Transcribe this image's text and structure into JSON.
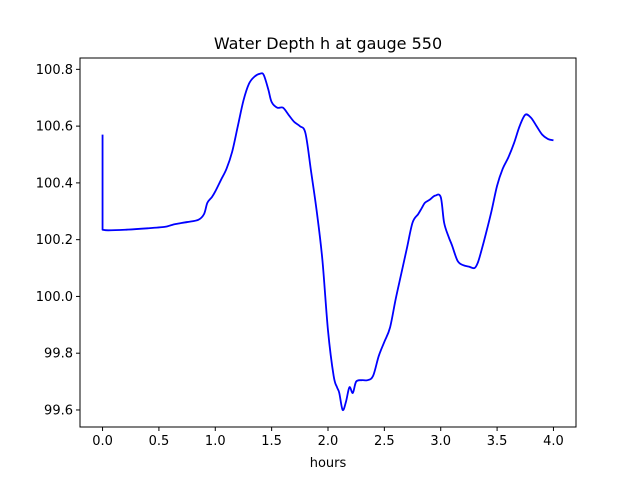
{
  "chart_data": {
    "type": "line",
    "title": "Water Depth h at gauge 550",
    "xlabel": "hours",
    "ylabel": "",
    "xlim": [
      -0.2,
      4.2
    ],
    "ylim": [
      99.54,
      100.84
    ],
    "xticks": [
      0.0,
      0.5,
      1.0,
      1.5,
      2.0,
      2.5,
      3.0,
      3.5,
      4.0
    ],
    "xtick_labels": [
      "0.0",
      "0.5",
      "1.0",
      "1.5",
      "2.0",
      "2.5",
      "3.0",
      "3.5",
      "4.0"
    ],
    "yticks": [
      99.6,
      99.8,
      100.0,
      100.2,
      100.4,
      100.6,
      100.8
    ],
    "ytick_labels": [
      "99.6",
      "99.8",
      "100.0",
      "100.2",
      "100.4",
      "100.6",
      "100.8"
    ],
    "grid": false,
    "series": [
      {
        "color": "#0000ff",
        "x": [
          0.0,
          0.0,
          0.05,
          0.2,
          0.4,
          0.55,
          0.6,
          0.65,
          0.75,
          0.85,
          0.9,
          0.93,
          0.97,
          1.0,
          1.05,
          1.1,
          1.15,
          1.2,
          1.25,
          1.3,
          1.35,
          1.4,
          1.43,
          1.47,
          1.5,
          1.55,
          1.6,
          1.65,
          1.7,
          1.75,
          1.8,
          1.85,
          1.9,
          1.95,
          2.0,
          2.05,
          2.08,
          2.1,
          2.13,
          2.16,
          2.19,
          2.22,
          2.25,
          2.3,
          2.35,
          2.4,
          2.45,
          2.5,
          2.55,
          2.6,
          2.65,
          2.7,
          2.75,
          2.8,
          2.83,
          2.86,
          2.9,
          2.95,
          3.0,
          3.03,
          3.07,
          3.1,
          3.15,
          3.2,
          3.25,
          3.3,
          3.33,
          3.36,
          3.4,
          3.45,
          3.5,
          3.55,
          3.6,
          3.65,
          3.7,
          3.75,
          3.8,
          3.85,
          3.9,
          3.95,
          4.0
        ],
        "y": [
          100.57,
          100.235,
          100.233,
          100.235,
          100.24,
          100.245,
          100.25,
          100.255,
          100.262,
          100.27,
          100.29,
          100.33,
          100.35,
          100.37,
          100.41,
          100.45,
          100.51,
          100.6,
          100.69,
          100.75,
          100.775,
          100.785,
          100.78,
          100.73,
          100.685,
          100.665,
          100.665,
          100.64,
          100.615,
          100.6,
          100.575,
          100.44,
          100.3,
          100.13,
          99.88,
          99.72,
          99.68,
          99.66,
          99.6,
          99.63,
          99.68,
          99.66,
          99.7,
          99.705,
          99.705,
          99.72,
          99.79,
          99.84,
          99.89,
          99.99,
          100.08,
          100.17,
          100.26,
          100.29,
          100.31,
          100.33,
          100.34,
          100.355,
          100.35,
          100.26,
          100.21,
          100.18,
          100.125,
          100.11,
          100.105,
          100.1,
          100.12,
          100.16,
          100.22,
          100.3,
          100.39,
          100.45,
          100.49,
          100.54,
          100.6,
          100.64,
          100.63,
          100.6,
          100.57,
          100.555,
          100.55
        ]
      }
    ]
  }
}
